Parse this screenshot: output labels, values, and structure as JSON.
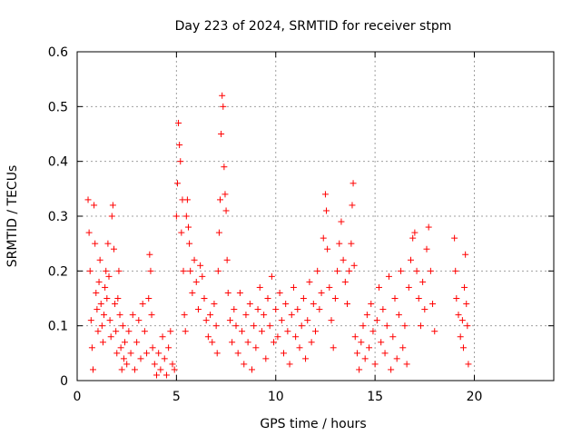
{
  "chart_data": {
    "type": "scatter",
    "title": "Day 223 of 2024, SRMTID for receiver stpm",
    "xlabel": "GPS time / hours",
    "ylabel": "SRMTID / TECUs",
    "xlim": [
      0,
      24
    ],
    "ylim": [
      0,
      0.6
    ],
    "x_ticks": [
      "0",
      "5",
      "10",
      "15",
      "20"
    ],
    "y_ticks": [
      "0",
      "0.1",
      "0.2",
      "0.3",
      "0.4",
      "0.5",
      "0.6"
    ],
    "grid": true,
    "marker": "+",
    "color": "#ff0000",
    "series": [
      {
        "values": [
          [
            0.55,
            0.33
          ],
          [
            0.6,
            0.27
          ],
          [
            0.65,
            0.2
          ],
          [
            0.7,
            0.11
          ],
          [
            0.75,
            0.06
          ],
          [
            0.8,
            0.02
          ],
          [
            0.85,
            0.32
          ],
          [
            0.9,
            0.25
          ],
          [
            0.95,
            0.16
          ],
          [
            1.0,
            0.13
          ],
          [
            1.05,
            0.09
          ],
          [
            1.1,
            0.18
          ],
          [
            1.15,
            0.22
          ],
          [
            1.2,
            0.14
          ],
          [
            1.25,
            0.1
          ],
          [
            1.3,
            0.07
          ],
          [
            1.35,
            0.12
          ],
          [
            1.4,
            0.17
          ],
          [
            1.45,
            0.2
          ],
          [
            1.5,
            0.15
          ],
          [
            1.55,
            0.25
          ],
          [
            1.6,
            0.19
          ],
          [
            1.65,
            0.11
          ],
          [
            1.7,
            0.08
          ],
          [
            1.75,
            0.3
          ],
          [
            1.8,
            0.32
          ],
          [
            1.85,
            0.24
          ],
          [
            1.9,
            0.14
          ],
          [
            1.95,
            0.09
          ],
          [
            2.0,
            0.05
          ],
          [
            2.05,
            0.15
          ],
          [
            2.1,
            0.2
          ],
          [
            2.15,
            0.12
          ],
          [
            2.2,
            0.06
          ],
          [
            2.25,
            0.02
          ],
          [
            2.3,
            0.1
          ],
          [
            2.35,
            0.04
          ],
          [
            2.4,
            0.07
          ],
          [
            2.5,
            0.03
          ],
          [
            2.6,
            0.09
          ],
          [
            2.7,
            0.05
          ],
          [
            2.8,
            0.12
          ],
          [
            2.9,
            0.02
          ],
          [
            3.0,
            0.07
          ],
          [
            3.1,
            0.11
          ],
          [
            3.2,
            0.04
          ],
          [
            3.3,
            0.14
          ],
          [
            3.4,
            0.09
          ],
          [
            3.5,
            0.05
          ],
          [
            3.6,
            0.15
          ],
          [
            3.65,
            0.23
          ],
          [
            3.7,
            0.2
          ],
          [
            3.75,
            0.12
          ],
          [
            3.8,
            0.06
          ],
          [
            3.9,
            0.03
          ],
          [
            4.0,
            0.01
          ],
          [
            4.1,
            0.05
          ],
          [
            4.2,
            0.02
          ],
          [
            4.3,
            0.08
          ],
          [
            4.4,
            0.04
          ],
          [
            4.5,
            0.01
          ],
          [
            4.6,
            0.06
          ],
          [
            4.7,
            0.09
          ],
          [
            4.8,
            0.03
          ],
          [
            4.9,
            0.02
          ],
          [
            5.0,
            0.3
          ],
          [
            5.05,
            0.36
          ],
          [
            5.1,
            0.47
          ],
          [
            5.15,
            0.43
          ],
          [
            5.2,
            0.4
          ],
          [
            5.25,
            0.27
          ],
          [
            5.3,
            0.33
          ],
          [
            5.35,
            0.2
          ],
          [
            5.4,
            0.12
          ],
          [
            5.45,
            0.09
          ],
          [
            5.5,
            0.3
          ],
          [
            5.55,
            0.33
          ],
          [
            5.6,
            0.28
          ],
          [
            5.65,
            0.25
          ],
          [
            5.7,
            0.2
          ],
          [
            5.8,
            0.16
          ],
          [
            5.9,
            0.22
          ],
          [
            6.0,
            0.18
          ],
          [
            6.1,
            0.13
          ],
          [
            6.2,
            0.21
          ],
          [
            6.3,
            0.19
          ],
          [
            6.4,
            0.15
          ],
          [
            6.5,
            0.11
          ],
          [
            6.6,
            0.08
          ],
          [
            6.7,
            0.12
          ],
          [
            6.8,
            0.07
          ],
          [
            6.9,
            0.14
          ],
          [
            7.0,
            0.1
          ],
          [
            7.05,
            0.05
          ],
          [
            7.1,
            0.2
          ],
          [
            7.15,
            0.27
          ],
          [
            7.2,
            0.33
          ],
          [
            7.25,
            0.45
          ],
          [
            7.3,
            0.52
          ],
          [
            7.35,
            0.5
          ],
          [
            7.4,
            0.39
          ],
          [
            7.45,
            0.34
          ],
          [
            7.5,
            0.31
          ],
          [
            7.55,
            0.22
          ],
          [
            7.6,
            0.16
          ],
          [
            7.7,
            0.11
          ],
          [
            7.8,
            0.07
          ],
          [
            7.9,
            0.13
          ],
          [
            8.0,
            0.1
          ],
          [
            8.1,
            0.05
          ],
          [
            8.2,
            0.16
          ],
          [
            8.3,
            0.09
          ],
          [
            8.4,
            0.03
          ],
          [
            8.5,
            0.12
          ],
          [
            8.6,
            0.07
          ],
          [
            8.7,
            0.14
          ],
          [
            8.8,
            0.02
          ],
          [
            8.9,
            0.1
          ],
          [
            9.0,
            0.06
          ],
          [
            9.1,
            0.13
          ],
          [
            9.2,
            0.17
          ],
          [
            9.3,
            0.09
          ],
          [
            9.4,
            0.12
          ],
          [
            9.5,
            0.04
          ],
          [
            9.6,
            0.15
          ],
          [
            9.7,
            0.1
          ],
          [
            9.8,
            0.19
          ],
          [
            9.9,
            0.07
          ],
          [
            10.0,
            0.13
          ],
          [
            10.1,
            0.08
          ],
          [
            10.2,
            0.16
          ],
          [
            10.3,
            0.11
          ],
          [
            10.4,
            0.05
          ],
          [
            10.5,
            0.14
          ],
          [
            10.6,
            0.09
          ],
          [
            10.7,
            0.03
          ],
          [
            10.8,
            0.12
          ],
          [
            10.9,
            0.17
          ],
          [
            11.0,
            0.08
          ],
          [
            11.1,
            0.13
          ],
          [
            11.2,
            0.06
          ],
          [
            11.3,
            0.1
          ],
          [
            11.4,
            0.15
          ],
          [
            11.5,
            0.04
          ],
          [
            11.6,
            0.11
          ],
          [
            11.7,
            0.18
          ],
          [
            11.8,
            0.07
          ],
          [
            11.9,
            0.14
          ],
          [
            12.0,
            0.09
          ],
          [
            12.1,
            0.2
          ],
          [
            12.2,
            0.13
          ],
          [
            12.3,
            0.16
          ],
          [
            12.4,
            0.26
          ],
          [
            12.5,
            0.34
          ],
          [
            12.55,
            0.31
          ],
          [
            12.6,
            0.24
          ],
          [
            12.7,
            0.17
          ],
          [
            12.8,
            0.11
          ],
          [
            12.9,
            0.06
          ],
          [
            13.0,
            0.15
          ],
          [
            13.1,
            0.2
          ],
          [
            13.2,
            0.25
          ],
          [
            13.3,
            0.29
          ],
          [
            13.4,
            0.22
          ],
          [
            13.5,
            0.18
          ],
          [
            13.6,
            0.14
          ],
          [
            13.7,
            0.2
          ],
          [
            13.8,
            0.25
          ],
          [
            13.85,
            0.32
          ],
          [
            13.9,
            0.36
          ],
          [
            13.95,
            0.21
          ],
          [
            14.0,
            0.08
          ],
          [
            14.1,
            0.05
          ],
          [
            14.2,
            0.02
          ],
          [
            14.3,
            0.07
          ],
          [
            14.4,
            0.1
          ],
          [
            14.5,
            0.04
          ],
          [
            14.6,
            0.12
          ],
          [
            14.7,
            0.06
          ],
          [
            14.8,
            0.14
          ],
          [
            14.9,
            0.09
          ],
          [
            15.0,
            0.03
          ],
          [
            15.1,
            0.11
          ],
          [
            15.2,
            0.17
          ],
          [
            15.3,
            0.07
          ],
          [
            15.4,
            0.13
          ],
          [
            15.5,
            0.05
          ],
          [
            15.6,
            0.1
          ],
          [
            15.7,
            0.19
          ],
          [
            15.8,
            0.02
          ],
          [
            15.9,
            0.08
          ],
          [
            16.0,
            0.15
          ],
          [
            16.1,
            0.04
          ],
          [
            16.2,
            0.12
          ],
          [
            16.3,
            0.2
          ],
          [
            16.4,
            0.06
          ],
          [
            16.5,
            0.1
          ],
          [
            16.6,
            0.03
          ],
          [
            16.7,
            0.17
          ],
          [
            16.8,
            0.22
          ],
          [
            16.9,
            0.26
          ],
          [
            17.0,
            0.27
          ],
          [
            17.1,
            0.2
          ],
          [
            17.2,
            0.15
          ],
          [
            17.3,
            0.1
          ],
          [
            17.4,
            0.18
          ],
          [
            17.5,
            0.13
          ],
          [
            17.6,
            0.24
          ],
          [
            17.7,
            0.28
          ],
          [
            17.8,
            0.2
          ],
          [
            17.9,
            0.14
          ],
          [
            18.0,
            0.09
          ],
          [
            19.0,
            0.26
          ],
          [
            19.05,
            0.2
          ],
          [
            19.1,
            0.15
          ],
          [
            19.2,
            0.12
          ],
          [
            19.3,
            0.08
          ],
          [
            19.4,
            0.11
          ],
          [
            19.45,
            0.06
          ],
          [
            19.5,
            0.17
          ],
          [
            19.55,
            0.23
          ],
          [
            19.6,
            0.14
          ],
          [
            19.65,
            0.1
          ],
          [
            19.7,
            0.03
          ]
        ]
      }
    ]
  }
}
